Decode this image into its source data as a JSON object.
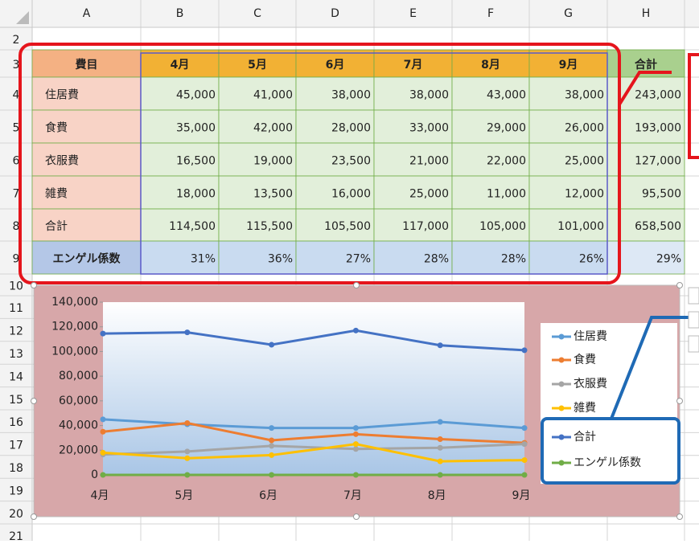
{
  "columns": [
    "A",
    "B",
    "C",
    "D",
    "E",
    "F",
    "G",
    "H"
  ],
  "row_numbers": [
    "2",
    "3",
    "4",
    "5",
    "6",
    "7",
    "8",
    "9",
    "10",
    "11",
    "12",
    "13",
    "14",
    "15",
    "16",
    "17",
    "18",
    "19",
    "20",
    "21"
  ],
  "table": {
    "header": [
      "費目",
      "4月",
      "5月",
      "6月",
      "7月",
      "8月",
      "9月",
      "合計"
    ],
    "rows": [
      [
        "住居費",
        "45,000",
        "41,000",
        "38,000",
        "38,000",
        "43,000",
        "38,000",
        "243,000"
      ],
      [
        "食費",
        "35,000",
        "42,000",
        "28,000",
        "33,000",
        "29,000",
        "26,000",
        "193,000"
      ],
      [
        "衣服費",
        "16,500",
        "19,000",
        "23,500",
        "21,000",
        "22,000",
        "25,000",
        "127,000"
      ],
      [
        "雑費",
        "18,000",
        "13,500",
        "16,000",
        "25,000",
        "11,000",
        "12,000",
        "95,500"
      ],
      [
        "合計",
        "114,500",
        "115,500",
        "105,500",
        "117,000",
        "105,000",
        "101,000",
        "658,500"
      ],
      [
        "エンゲル係数",
        "31%",
        "36%",
        "27%",
        "28%",
        "28%",
        "26%",
        "29%"
      ]
    ]
  },
  "chart_data": {
    "type": "line",
    "categories": [
      "4月",
      "5月",
      "6月",
      "7月",
      "8月",
      "9月"
    ],
    "ylim": [
      0,
      140000
    ],
    "yticks": [
      0,
      {
        "value": 20000,
        "label": "20,000"
      },
      {
        "value": 40000,
        "label": "40,000"
      },
      {
        "value": 60000,
        "label": "60,000"
      },
      {
        "value": 80000,
        "label": "80,000"
      },
      {
        "value": 100000,
        "label": "100,000"
      },
      {
        "value": 120000,
        "label": "120,000"
      },
      {
        "value": 140000,
        "label": "140,000"
      }
    ],
    "series": [
      {
        "name": "住居費",
        "color": "#5b9bd5",
        "values": [
          45000,
          41000,
          38000,
          38000,
          43000,
          38000
        ]
      },
      {
        "name": "食費",
        "color": "#ed7d31",
        "values": [
          35000,
          42000,
          28000,
          33000,
          29000,
          26000
        ]
      },
      {
        "name": "衣服費",
        "color": "#a5a5a5",
        "values": [
          16500,
          19000,
          23500,
          21000,
          22000,
          25000
        ]
      },
      {
        "name": "雑費",
        "color": "#ffc000",
        "values": [
          18000,
          13500,
          16000,
          25000,
          11000,
          12000
        ]
      },
      {
        "name": "合計",
        "color": "#4472c4",
        "values": [
          114500,
          115500,
          105500,
          117000,
          105000,
          101000
        ]
      },
      {
        "name": "エンゲル係数",
        "color": "#70ad47",
        "values": [
          0.31,
          0.36,
          0.27,
          0.28,
          0.28,
          0.26
        ]
      }
    ]
  }
}
